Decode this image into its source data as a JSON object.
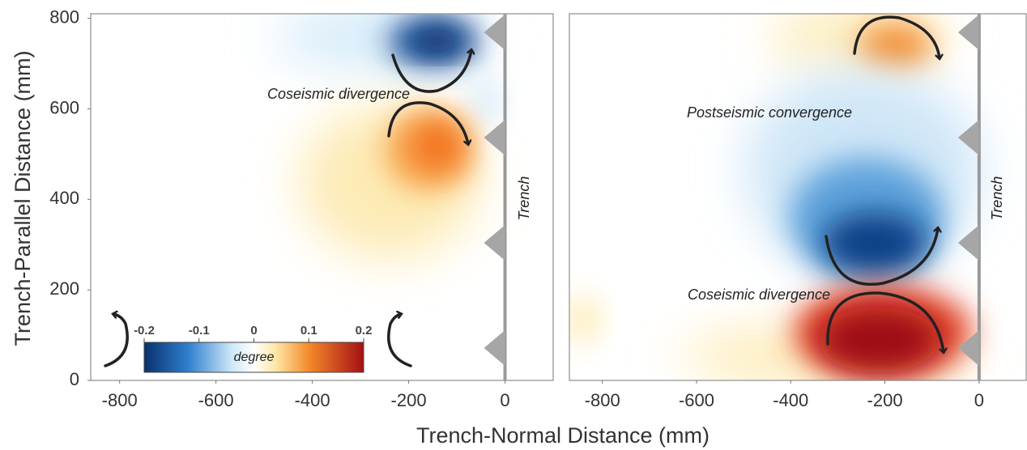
{
  "chart_data": [
    {
      "type": "heatmap",
      "xlabel": "Trench-Normal Distance (mm)",
      "ylabel": "Trench-Parallel Distance (mm)",
      "xlim": [
        -860,
        100
      ],
      "ylim": [
        0,
        810
      ],
      "xticks": [
        -800,
        -600,
        -400,
        -200,
        0
      ],
      "yticks": [
        0,
        200,
        400,
        600,
        800
      ],
      "annotations": [
        "Coseismic divergence"
      ],
      "trench_label": "Trench",
      "colorbar": {
        "label": "degree",
        "lim": [
          -0.2,
          0.2
        ],
        "ticks": [
          -0.2,
          -0.1,
          0,
          0.1,
          0.2
        ]
      }
    },
    {
      "type": "heatmap",
      "xlim": [
        -870,
        100
      ],
      "ylim": [
        0,
        810
      ],
      "xticks": [
        -800,
        -600,
        -400,
        -200,
        0
      ],
      "annotations": [
        "Postseismic convergence",
        "Coseismic divergence"
      ],
      "trench_label": "Trench"
    }
  ]
}
